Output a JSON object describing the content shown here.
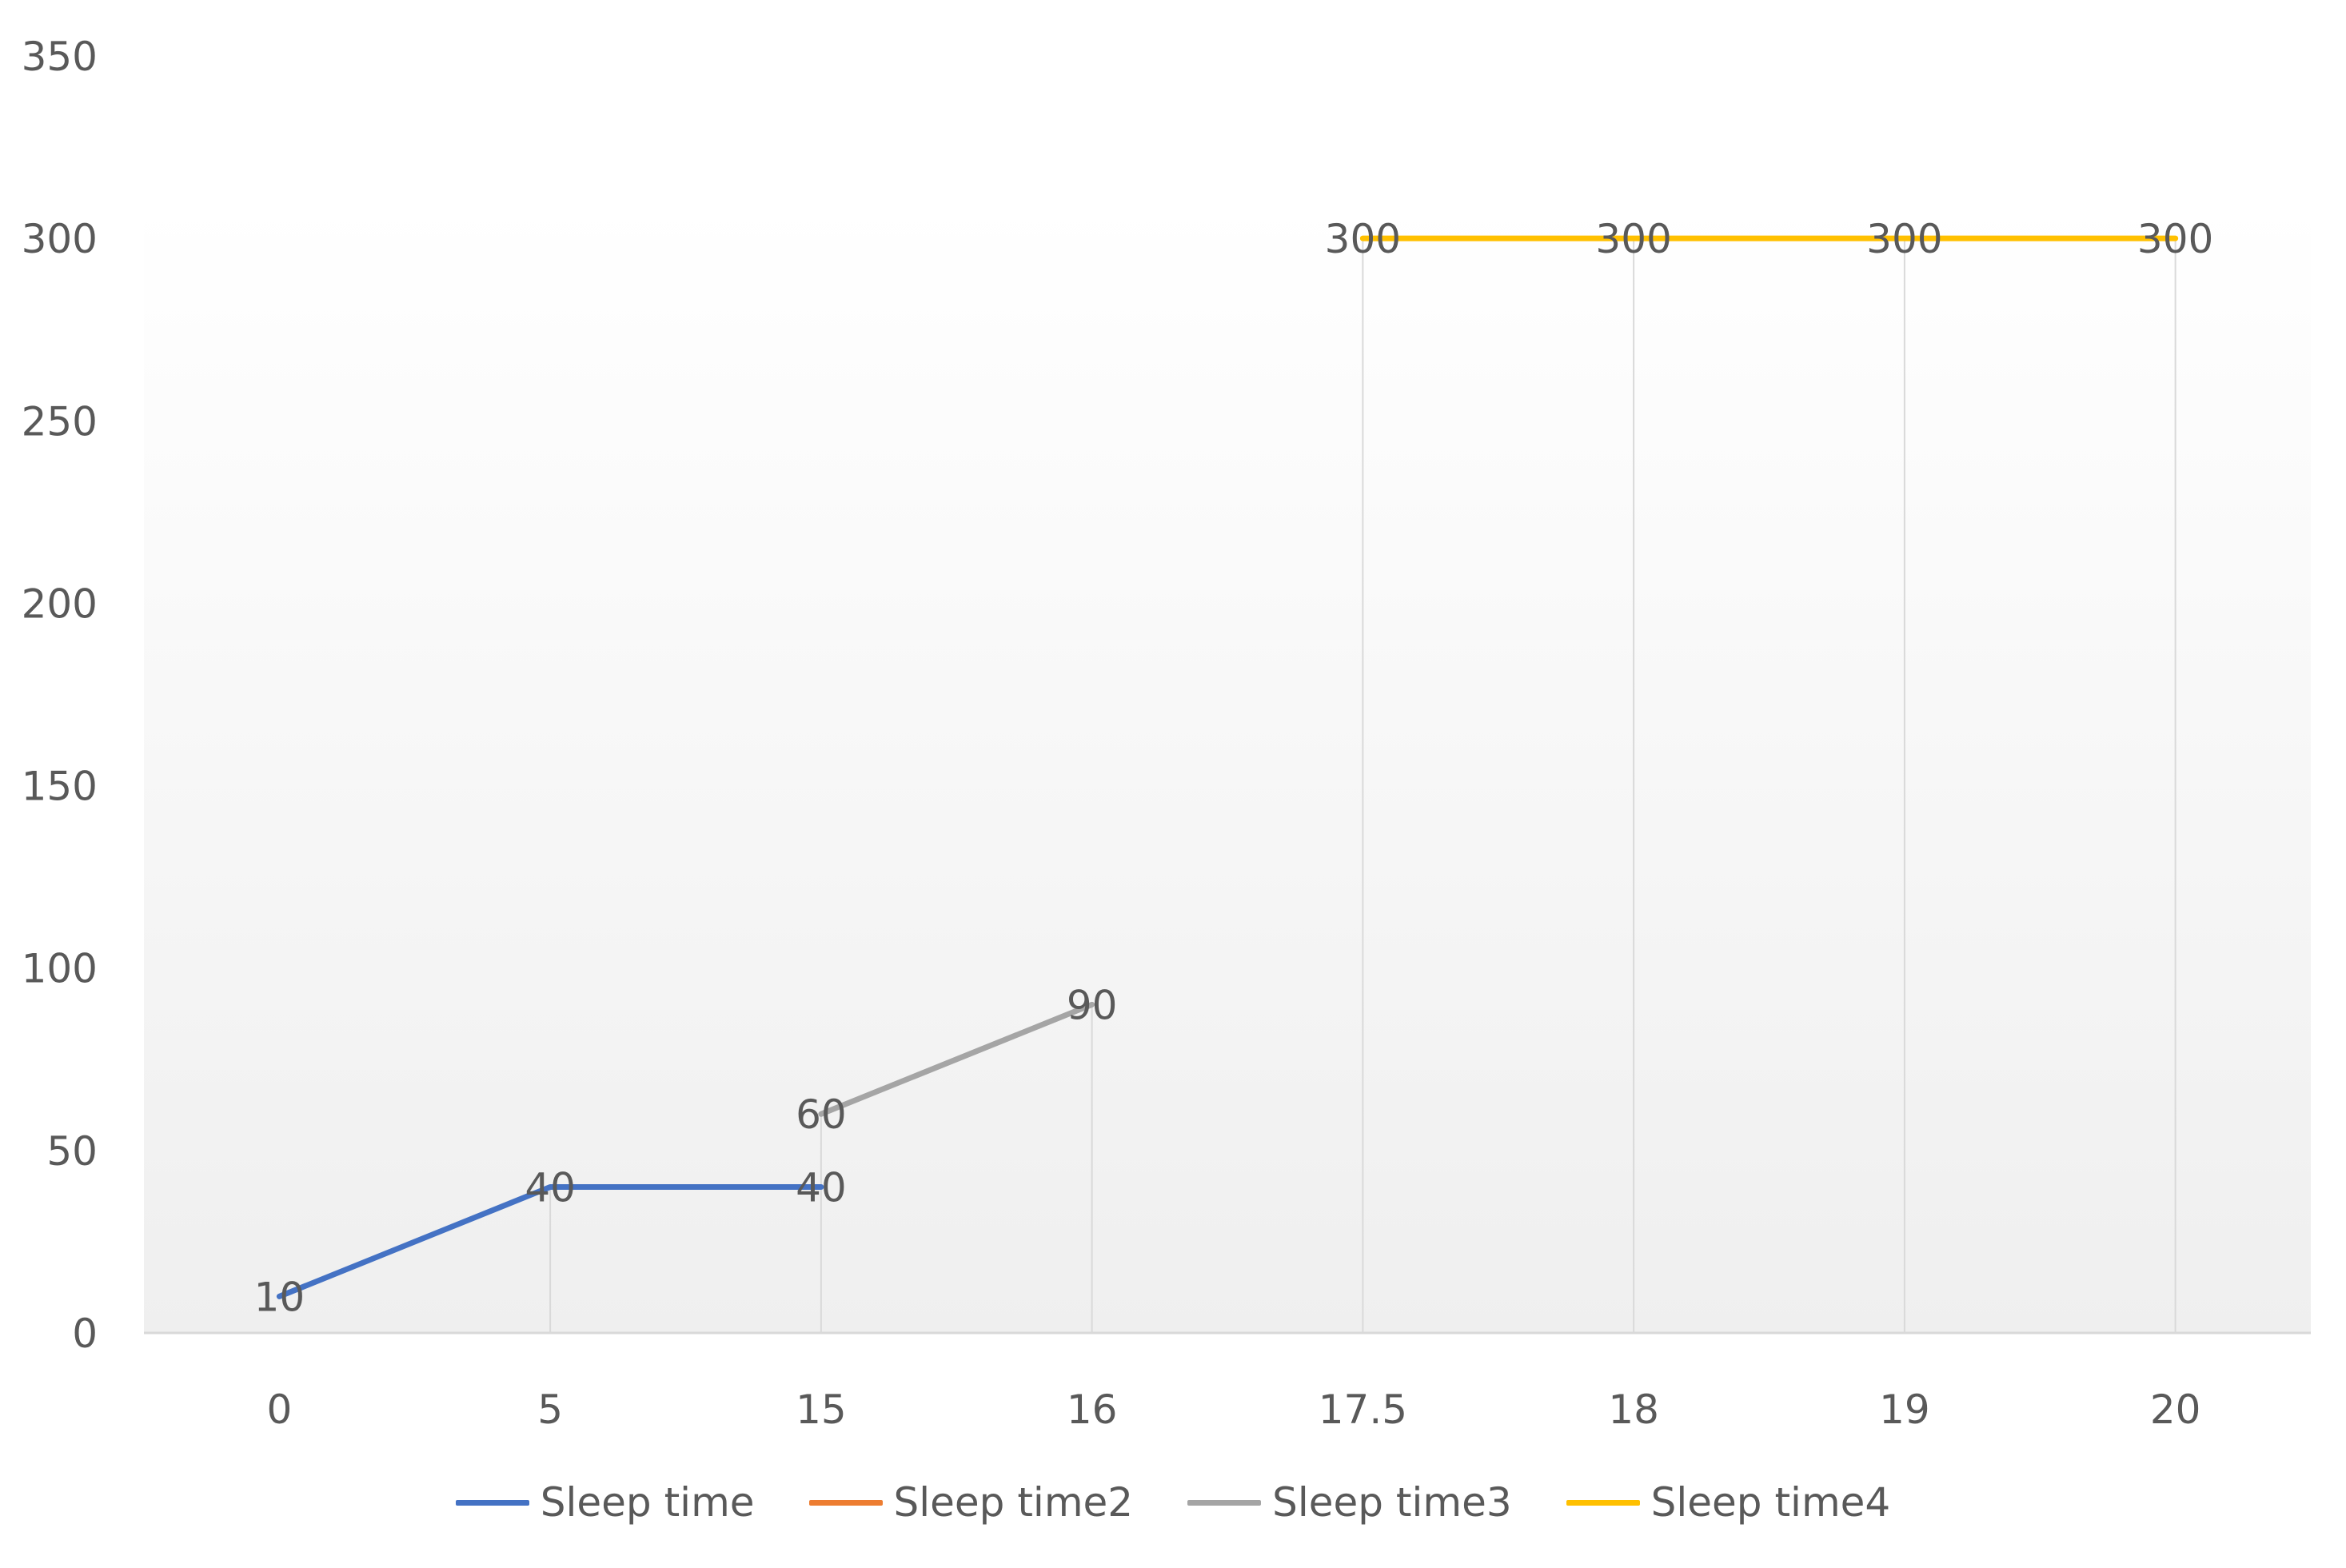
{
  "chart_data": {
    "type": "line",
    "title": "",
    "xlabel": "",
    "ylabel": "",
    "categories": [
      "0",
      "5",
      "15",
      "16",
      "17.5",
      "18",
      "19",
      "20"
    ],
    "ylim": [
      0,
      350
    ],
    "y_ticks": [
      "0",
      "50",
      "100",
      "150",
      "200",
      "250",
      "300",
      "350"
    ],
    "grid": "vertical",
    "legend_position": "bottom",
    "series": [
      {
        "name": "Sleep time",
        "color": "#4472C4",
        "values": [
          10,
          40,
          40,
          null,
          null,
          null,
          null,
          null
        ]
      },
      {
        "name": "Sleep time2",
        "color": "#ED7D31",
        "values": [
          null,
          null,
          null,
          null,
          null,
          null,
          null,
          null
        ]
      },
      {
        "name": "Sleep time3",
        "color": "#A5A5A5",
        "values": [
          null,
          null,
          60,
          90,
          null,
          null,
          null,
          null
        ]
      },
      {
        "name": "Sleep time4",
        "color": "#FFC000",
        "values": [
          null,
          null,
          null,
          null,
          300,
          300,
          300,
          300
        ]
      }
    ],
    "data_labels": [
      {
        "category": "0",
        "value": "10"
      },
      {
        "category": "5",
        "value": "40"
      },
      {
        "category": "15",
        "value": "40"
      },
      {
        "category": "15",
        "value": "60"
      },
      {
        "category": "16",
        "value": "90"
      },
      {
        "category": "17.5",
        "value": "300"
      },
      {
        "category": "18",
        "value": "300"
      },
      {
        "category": "19",
        "value": "300"
      },
      {
        "category": "20",
        "value": "300"
      }
    ]
  }
}
